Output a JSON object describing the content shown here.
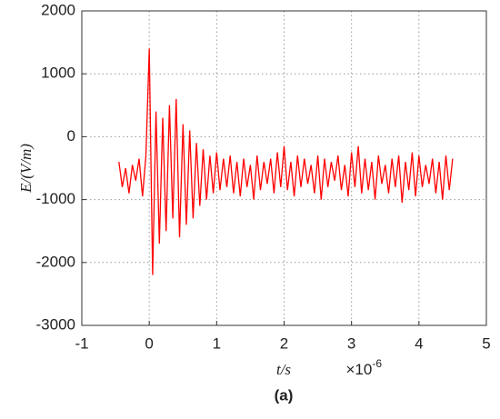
{
  "chart_data": {
    "type": "line",
    "y_label": {
      "symbol": "E",
      "unit": "/(V/m)"
    },
    "x_label": {
      "symbol": "t",
      "unit": "/s"
    },
    "x_multiplier": {
      "base": "×10",
      "exponent": "-6"
    },
    "caption": "(a)",
    "xlim": [
      -1,
      5
    ],
    "xticks": [
      -1,
      0,
      1,
      2,
      3,
      4,
      5
    ],
    "ylim": [
      -3000,
      2000
    ],
    "yticks": [
      -3000,
      -2000,
      -1000,
      0,
      1000,
      2000
    ],
    "grid": true,
    "x": [
      -0.45,
      -0.4,
      -0.35,
      -0.3,
      -0.25,
      -0.2,
      -0.15,
      -0.1,
      -0.05,
      0,
      0.05,
      0.1,
      0.15,
      0.2,
      0.25,
      0.3,
      0.35,
      0.4,
      0.45,
      0.5,
      0.55,
      0.6,
      0.65,
      0.7,
      0.75,
      0.8,
      0.85,
      0.9,
      0.95,
      1,
      1.05,
      1.1,
      1.15,
      1.2,
      1.25,
      1.3,
      1.35,
      1.4,
      1.45,
      1.5,
      1.55,
      1.6,
      1.65,
      1.7,
      1.75,
      1.8,
      1.85,
      1.9,
      1.95,
      2,
      2.05,
      2.1,
      2.15,
      2.2,
      2.25,
      2.3,
      2.35,
      2.4,
      2.45,
      2.5,
      2.55,
      2.6,
      2.65,
      2.7,
      2.75,
      2.8,
      2.85,
      2.9,
      2.95,
      3,
      3.05,
      3.1,
      3.15,
      3.2,
      3.25,
      3.3,
      3.35,
      3.4,
      3.45,
      3.5,
      3.55,
      3.6,
      3.65,
      3.7,
      3.75,
      3.8,
      3.85,
      3.9,
      3.95,
      4,
      4.05,
      4.1,
      4.15,
      4.2,
      4.25,
      4.3,
      4.35,
      4.4,
      4.45,
      4.5
    ],
    "series": [
      {
        "color": "#ff0000",
        "values": [
          -400,
          -800,
          -500,
          -900,
          -450,
          -700,
          -350,
          -950,
          -300,
          1400,
          -2200,
          400,
          -1700,
          300,
          -1500,
          500,
          -1300,
          600,
          -1600,
          200,
          -1400,
          100,
          -1300,
          -100,
          -1100,
          -200,
          -1000,
          -300,
          -900,
          -250,
          -850,
          -350,
          -800,
          -300,
          -900,
          -400,
          -950,
          -350,
          -800,
          -450,
          -1000,
          -300,
          -850,
          -400,
          -750,
          -350,
          -900,
          -250,
          -800,
          -150,
          -850,
          -400,
          -950,
          -300,
          -800,
          -350,
          -750,
          -450,
          -900,
          -300,
          -1000,
          -350,
          -800,
          -400,
          -700,
          -300,
          -850,
          -450,
          -950,
          -250,
          -800,
          -150,
          -900,
          -350,
          -850,
          -400,
          -1000,
          -300,
          -750,
          -450,
          -900,
          -350,
          -800,
          -300,
          -1050,
          -400,
          -850,
          -250,
          -950,
          -300,
          -800,
          -450,
          -750,
          -350,
          -900,
          -400,
          -1000,
          -300,
          -850,
          -350
        ]
      }
    ]
  }
}
